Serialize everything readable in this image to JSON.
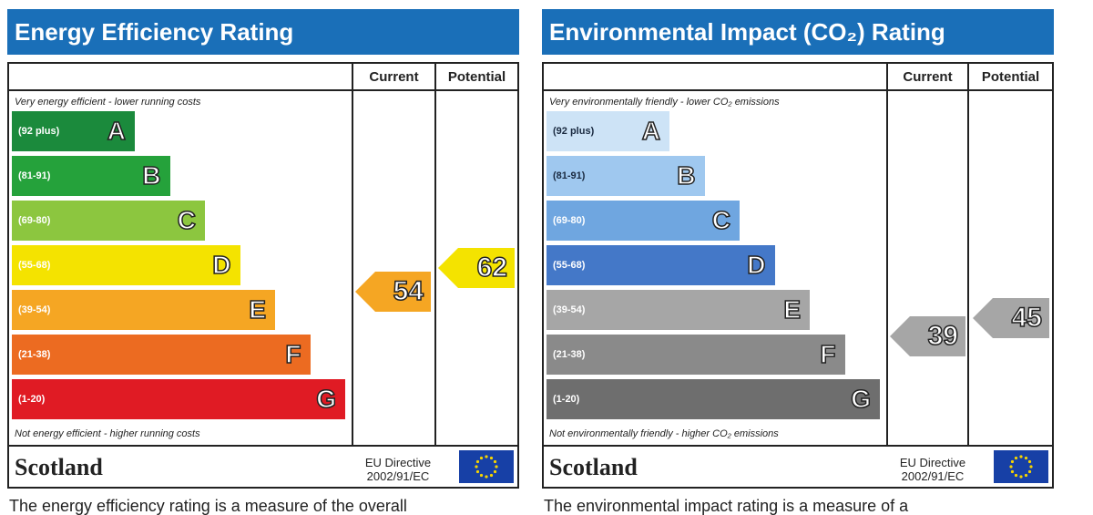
{
  "chart_data": [
    {
      "type": "bar",
      "title": "Energy Efficiency Rating",
      "columns": [
        "Current",
        "Potential"
      ],
      "caption_top": "Very energy efficient - lower running costs",
      "caption_bottom": "Not energy efficient - higher running costs",
      "bands": [
        {
          "letter": "A",
          "range": "(92 plus)",
          "color": "#1b8a3c"
        },
        {
          "letter": "B",
          "range": "(81-91)",
          "color": "#25a23b"
        },
        {
          "letter": "C",
          "range": "(69-80)",
          "color": "#8cc63f"
        },
        {
          "letter": "D",
          "range": "(55-68)",
          "color": "#f4e300"
        },
        {
          "letter": "E",
          "range": "(39-54)",
          "color": "#f5a623"
        },
        {
          "letter": "F",
          "range": "(21-38)",
          "color": "#ec6b21"
        },
        {
          "letter": "G",
          "range": "(1-20)",
          "color": "#e01b24"
        }
      ],
      "current": {
        "value": 54,
        "band": "E",
        "color": "#f5a623"
      },
      "potential": {
        "value": 62,
        "band": "D",
        "color": "#f4e300"
      },
      "region": "Scotland",
      "directive": [
        "EU Directive",
        "2002/91/EC"
      ],
      "footer": "The energy efficiency rating is a measure of the overall"
    },
    {
      "type": "bar",
      "title": "Environmental Impact (CO₂) Rating",
      "columns": [
        "Current",
        "Potential"
      ],
      "caption_top": "Very environmentally friendly - lower CO₂ emissions",
      "caption_bottom": "Not environmentally friendly - higher CO₂ emissions",
      "bands": [
        {
          "letter": "A",
          "range": "(92 plus)",
          "color": "#cde3f6"
        },
        {
          "letter": "B",
          "range": "(81-91)",
          "color": "#9fc8ef"
        },
        {
          "letter": "C",
          "range": "(69-80)",
          "color": "#6fa6e0"
        },
        {
          "letter": "D",
          "range": "(55-68)",
          "color": "#4478c8"
        },
        {
          "letter": "E",
          "range": "(39-54)",
          "color": "#a6a6a6"
        },
        {
          "letter": "F",
          "range": "(21-38)",
          "color": "#8a8a8a"
        },
        {
          "letter": "G",
          "range": "(1-20)",
          "color": "#6e6e6e"
        }
      ],
      "current": {
        "value": 39,
        "band": "E",
        "color": "#a6a6a6"
      },
      "potential": {
        "value": 45,
        "band": "E",
        "color": "#a6a6a6"
      },
      "region": "Scotland",
      "directive": [
        "EU Directive",
        "2002/91/EC"
      ],
      "footer": "The environmental impact rating is a measure of a"
    }
  ]
}
